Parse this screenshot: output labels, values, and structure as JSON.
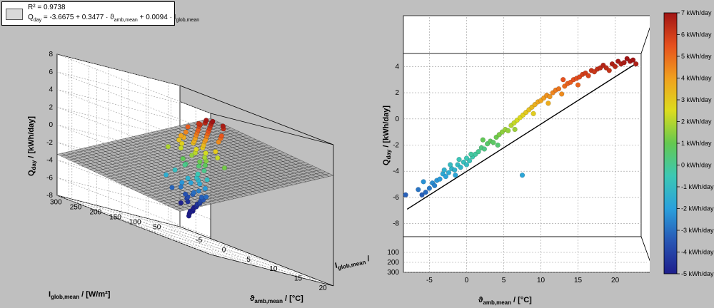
{
  "legend": {
    "r2": "R² = 0.9738",
    "eq_lhs": "Q",
    "eq_lhs_sub": "day",
    "eq_mid1": " =  -3.6675 + 0.3477 · ϑ",
    "eq_mid1_sub": "amb,mean",
    "eq_mid2": " + 0.0094 · I",
    "eq_mid2_sub": "glob,mean"
  },
  "colors": {
    "background": "#bfbfbf",
    "surface_fill": "#a8a8a8",
    "surface_mesh": "#2a2a2a",
    "regression_line": "#000000",
    "colormap": [
      "#1e1e8c",
      "#2856b4",
      "#2aa0dc",
      "#3cc8b4",
      "#64c850",
      "#dcdc1e",
      "#f0a01e",
      "#e6501e",
      "#a01414"
    ]
  },
  "labels": {
    "z_main": "Q",
    "z_sub": "day",
    "z_unit": " / [kWh/day]",
    "i_main": "I",
    "i_sub": "glob,mean",
    "i_unit": " / [W/m²]",
    "t_main": "ϑ",
    "t_sub": "amb,mean",
    "t_unit": " / [°C]"
  },
  "chart_data": [
    {
      "type": "scatter",
      "view": "3d",
      "surface": {
        "intercept": -3.6675,
        "coef_theta": 0.3477,
        "coef_irradiance": 0.0094
      },
      "axes": {
        "theta": {
          "ticks": [
            -5,
            0,
            5,
            10,
            15,
            20
          ],
          "range": [
            -8,
            23
          ]
        },
        "irradiance": {
          "ticks": [
            50,
            100,
            150,
            200,
            250,
            300
          ],
          "range": [
            20,
            330
          ]
        },
        "q": {
          "ticks": [
            -8,
            -6,
            -4,
            -2,
            0,
            2,
            4,
            6,
            8
          ],
          "range": [
            -8,
            8
          ]
        }
      },
      "points": [
        [
          -5,
          35,
          -6.3
        ],
        [
          -4.5,
          40,
          -6.0
        ],
        [
          -4,
          45,
          -5.8
        ],
        [
          -3.5,
          50,
          -5.6
        ],
        [
          -3,
          50,
          -5.5
        ],
        [
          -2.5,
          55,
          -5.2
        ],
        [
          -2,
          60,
          -5.0
        ],
        [
          -1.5,
          60,
          -4.8
        ],
        [
          -1,
          65,
          -4.6
        ],
        [
          -0.5,
          70,
          -4.4
        ],
        [
          0,
          70,
          -4.2
        ],
        [
          0.5,
          75,
          -4.0
        ],
        [
          1,
          80,
          -3.8
        ],
        [
          1.5,
          80,
          -3.6
        ],
        [
          2,
          90,
          -3.3
        ],
        [
          2.5,
          85,
          -3.1
        ],
        [
          -2,
          75,
          -4.5
        ],
        [
          -1,
          90,
          -4.1
        ],
        [
          0,
          100,
          -3.8
        ],
        [
          1,
          100,
          -3.3
        ],
        [
          2,
          110,
          -3.0
        ],
        [
          3,
          110,
          -2.6
        ],
        [
          -3,
          80,
          -4.9
        ],
        [
          -0.5,
          100,
          -3.6
        ],
        [
          3.5,
          100,
          -2.1
        ],
        [
          4,
          120,
          -1.7
        ],
        [
          4.5,
          130,
          -1.3
        ],
        [
          5,
          140,
          -1.0
        ],
        [
          5.5,
          120,
          -0.9
        ],
        [
          6,
          150,
          -0.5
        ],
        [
          3,
          130,
          -1.9
        ],
        [
          4,
          150,
          -1.4
        ],
        [
          6.5,
          140,
          0.1
        ],
        [
          7,
          160,
          0.5
        ],
        [
          7.5,
          150,
          0.8
        ],
        [
          8,
          170,
          1.1
        ],
        [
          6,
          180,
          0.3
        ],
        [
          7,
          200,
          0.9
        ],
        [
          8,
          190,
          1.6
        ],
        [
          8.5,
          160,
          1.4
        ],
        [
          9,
          170,
          1.8
        ],
        [
          9.5,
          200,
          2.1
        ],
        [
          10,
          180,
          2.4
        ],
        [
          10.5,
          210,
          2.6
        ],
        [
          9,
          230,
          2.2
        ],
        [
          10,
          240,
          2.8
        ],
        [
          11,
          200,
          3.0
        ],
        [
          11.5,
          230,
          3.3
        ],
        [
          12,
          210,
          3.4
        ],
        [
          12.5,
          240,
          3.6
        ],
        [
          13,
          220,
          3.9
        ],
        [
          12,
          260,
          3.7
        ],
        [
          13.5,
          250,
          4.0
        ],
        [
          14,
          230,
          4.2
        ],
        [
          14.5,
          260,
          4.5
        ],
        [
          15,
          240,
          4.7
        ],
        [
          15.5,
          270,
          4.9
        ],
        [
          16,
          250,
          5.1
        ],
        [
          16.5,
          280,
          5.3
        ],
        [
          17,
          260,
          5.5
        ],
        [
          17.5,
          290,
          5.8
        ],
        [
          18,
          270,
          5.9
        ],
        [
          18.5,
          300,
          6.1
        ],
        [
          19,
          280,
          6.3
        ],
        [
          19.5,
          300,
          6.5
        ],
        [
          20,
          290,
          6.7
        ],
        [
          20.5,
          310,
          6.9
        ],
        [
          21,
          300,
          7.0
        ],
        [
          14,
          280,
          4.5
        ],
        [
          16,
          300,
          5.3
        ],
        [
          17,
          230,
          5.0
        ],
        [
          18,
          240,
          5.4
        ],
        [
          11,
          260,
          3.2
        ],
        [
          13,
          280,
          3.9
        ],
        [
          15,
          210,
          4.4
        ],
        [
          10,
          150,
          2.2
        ],
        [
          8,
          250,
          1.9
        ],
        [
          5,
          170,
          0.1
        ],
        [
          3,
          170,
          -0.9
        ],
        [
          2,
          140,
          -2.2
        ],
        [
          1,
          130,
          -2.8
        ],
        [
          0,
          140,
          -3.2
        ],
        [
          6,
          230,
          -1.5
        ],
        [
          9,
          120,
          1.2
        ],
        [
          12,
          180,
          3.0
        ],
        [
          19,
          310,
          6.2
        ],
        [
          20,
          260,
          6.4
        ],
        [
          21.5,
          280,
          6.8
        ]
      ]
    },
    {
      "type": "scatter",
      "view": "2d-projection",
      "regression_line": {
        "x": [
          -8,
          23
        ],
        "y": [
          -6.9,
          4.3
        ]
      },
      "axes": {
        "x": {
          "ticks": [
            -5,
            0,
            5,
            10,
            15,
            20
          ],
          "range": [
            -8.5,
            23.5
          ]
        },
        "y": {
          "ticks": [
            -8,
            -6,
            -4,
            -2,
            0,
            2,
            4
          ],
          "range": [
            -9,
            5
          ]
        },
        "irradiance_depth": {
          "ticks": [
            100,
            200,
            300
          ]
        }
      },
      "points": [
        [
          -8.2,
          -5.8
        ],
        [
          -6.5,
          -5.4
        ],
        [
          -6.0,
          -5.8
        ],
        [
          -5.5,
          -5.6
        ],
        [
          -5.0,
          -5.3
        ],
        [
          -4.6,
          -4.9
        ],
        [
          -4.3,
          -5.1
        ],
        [
          -4.0,
          -4.7
        ],
        [
          -3.6,
          -4.6
        ],
        [
          -3.2,
          -4.2
        ],
        [
          -2.8,
          -4.4
        ],
        [
          -2.4,
          -4.1
        ],
        [
          -2.0,
          -3.8
        ],
        [
          -1.6,
          -3.9
        ],
        [
          -1.2,
          -3.5
        ],
        [
          -0.8,
          -3.7
        ],
        [
          -0.4,
          -3.3
        ],
        [
          0.0,
          -3.5
        ],
        [
          0.4,
          -3.2
        ],
        [
          0.8,
          -2.9
        ],
        [
          -3.0,
          -3.9
        ],
        [
          -2.2,
          -3.5
        ],
        [
          -1.0,
          -3.1
        ],
        [
          0.0,
          -3.0
        ],
        [
          0.6,
          -2.7
        ],
        [
          1.2,
          -2.7
        ],
        [
          1.6,
          -2.5
        ],
        [
          2.0,
          -2.2
        ],
        [
          2.4,
          -2.3
        ],
        [
          2.8,
          -1.9
        ],
        [
          3.2,
          -1.7
        ],
        [
          3.6,
          -1.8
        ],
        [
          4.0,
          -1.4
        ],
        [
          4.4,
          -1.2
        ],
        [
          4.8,
          -1.0
        ],
        [
          5.2,
          -0.8
        ],
        [
          5.6,
          -0.9
        ],
        [
          6.0,
          -0.5
        ],
        [
          6.4,
          -0.3
        ],
        [
          6.8,
          -0.1
        ],
        [
          7.2,
          0.1
        ],
        [
          7.5,
          -4.3
        ],
        [
          7.6,
          0.3
        ],
        [
          8.0,
          0.5
        ],
        [
          8.4,
          0.7
        ],
        [
          8.8,
          0.9
        ],
        [
          9.2,
          1.1
        ],
        [
          9.6,
          1.3
        ],
        [
          10.0,
          1.4
        ],
        [
          10.4,
          1.6
        ],
        [
          10.8,
          1.8
        ],
        [
          11.2,
          1.7
        ],
        [
          11.6,
          2.0
        ],
        [
          12.0,
          2.2
        ],
        [
          12.4,
          2.3
        ],
        [
          12.8,
          1.9
        ],
        [
          13.2,
          2.5
        ],
        [
          13.6,
          2.7
        ],
        [
          14.0,
          2.8
        ],
        [
          14.4,
          3.0
        ],
        [
          14.8,
          3.1
        ],
        [
          15.2,
          3.2
        ],
        [
          15.6,
          3.4
        ],
        [
          16.0,
          3.5
        ],
        [
          16.4,
          3.3
        ],
        [
          16.8,
          3.7
        ],
        [
          17.2,
          3.6
        ],
        [
          17.6,
          3.8
        ],
        [
          18.0,
          3.9
        ],
        [
          18.4,
          4.1
        ],
        [
          18.8,
          3.9
        ],
        [
          19.2,
          3.7
        ],
        [
          19.6,
          4.2
        ],
        [
          20.0,
          4.0
        ],
        [
          20.4,
          4.4
        ],
        [
          20.8,
          4.2
        ],
        [
          21.2,
          4.3
        ],
        [
          21.6,
          4.6
        ],
        [
          22.0,
          4.4
        ],
        [
          22.4,
          4.5
        ],
        [
          22.8,
          4.2
        ],
        [
          9.0,
          0.4
        ],
        [
          11.0,
          1.2
        ],
        [
          13.0,
          3.0
        ],
        [
          15.0,
          2.6
        ],
        [
          6.5,
          -0.8
        ],
        [
          4.2,
          -2.0
        ],
        [
          2.2,
          -1.6
        ],
        [
          -1.5,
          -4.3
        ],
        [
          -5.8,
          -4.8
        ]
      ]
    },
    {
      "type": "colorbar",
      "range": [
        -5,
        7
      ],
      "ticks": [
        -5,
        -4,
        -3,
        -2,
        -1,
        0,
        1,
        2,
        3,
        4,
        5,
        6,
        7
      ],
      "tick_suffix": "kWh/day"
    }
  ]
}
